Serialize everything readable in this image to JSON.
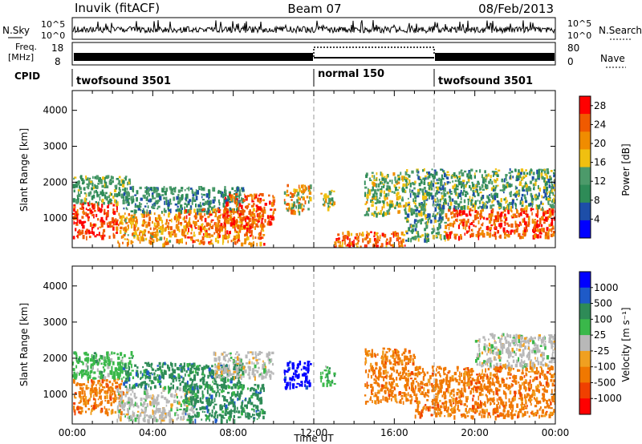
{
  "header": {
    "title": "Inuvik (fitACF)",
    "beam": "Beam 07",
    "date": "08/Feb/2013"
  },
  "status_panels": {
    "nsky_label": "N.Sky",
    "nsky_ticks": [
      "10^5",
      "10^0"
    ],
    "nsearch_ticks": [
      "10^5",
      "10^0"
    ],
    "nsearch_label": "N.Search",
    "freq_label_1": "Freq.",
    "freq_label_2": "[MHz]",
    "freq_ticks": [
      "18",
      "8"
    ],
    "nave_ticks": [
      "80",
      "0"
    ],
    "nave_label": "Nave",
    "cpid_label": "CPID",
    "cpid_segments": [
      {
        "label": "twofsound 3501",
        "start_h": 0,
        "end_h": 12
      },
      {
        "label": "normal 150",
        "start_h": 12,
        "end_h": 18
      },
      {
        "label": "twofsound 3501",
        "start_h": 18,
        "end_h": 24
      }
    ]
  },
  "colors": {
    "power_scale": [
      "#0000ff",
      "#1d4ea8",
      "#2e8b57",
      "#4c9a6a",
      "#f0c010",
      "#f08c00",
      "#f05a00",
      "#ff0000"
    ],
    "velocity_scale": [
      "#0000ff",
      "#1e5ac8",
      "#2e8b57",
      "#3ab84a",
      "#b8b8b8",
      "#f0a020",
      "#f07800",
      "#f04000",
      "#ff0000"
    ],
    "ground": "#a0a0a0"
  },
  "chart_data": [
    {
      "type": "heatmap",
      "name": "power",
      "xlabel": "",
      "ylabel": "Slant Range [km]",
      "xlim": [
        0,
        24
      ],
      "ylim": [
        180,
        4550
      ],
      "yticks": [
        "1000",
        "2000",
        "3000",
        "4000"
      ],
      "colorbar_label": "Power [dB]",
      "colorbar_ticks": [
        "4",
        "8",
        "12",
        "16",
        "20",
        "24",
        "28"
      ],
      "colorbar_range": [
        0,
        30
      ],
      "regions": [
        {
          "t0": 0.0,
          "t1": 2.2,
          "r0": 500,
          "r1": 1450,
          "v0": 22,
          "v1": 30
        },
        {
          "t0": 0.0,
          "t1": 3.0,
          "r0": 1450,
          "r1": 2200,
          "v0": 8,
          "v1": 16
        },
        {
          "t0": 2.2,
          "t1": 5.5,
          "r0": 300,
          "r1": 1200,
          "v0": 14,
          "v1": 26
        },
        {
          "t0": 2.5,
          "t1": 8.5,
          "r0": 1200,
          "r1": 1900,
          "v0": 6,
          "v1": 14
        },
        {
          "t0": 5.5,
          "t1": 9.5,
          "r0": 300,
          "r1": 1300,
          "v0": 16,
          "v1": 28
        },
        {
          "t0": 7.5,
          "t1": 10.0,
          "r0": 800,
          "r1": 1700,
          "v0": 20,
          "v1": 29
        },
        {
          "t0": 10.5,
          "t1": 11.8,
          "r0": 1200,
          "r1": 1950,
          "v0": 10,
          "v1": 26
        },
        {
          "t0": 12.3,
          "t1": 13.0,
          "r0": 1300,
          "r1": 1800,
          "v0": 10,
          "v1": 22
        },
        {
          "t0": 13.0,
          "t1": 16.5,
          "r0": 200,
          "r1": 650,
          "v0": 18,
          "v1": 29
        },
        {
          "t0": 14.5,
          "t1": 16.5,
          "r0": 1100,
          "r1": 2300,
          "v0": 8,
          "v1": 20
        },
        {
          "t0": 16.5,
          "t1": 18.5,
          "r0": 400,
          "r1": 2400,
          "v0": 6,
          "v1": 18
        },
        {
          "t0": 18.5,
          "t1": 24.0,
          "r0": 500,
          "r1": 1300,
          "v0": 20,
          "v1": 30
        },
        {
          "t0": 18.5,
          "t1": 24.0,
          "r0": 1300,
          "r1": 2400,
          "v0": 6,
          "v1": 18
        }
      ]
    },
    {
      "type": "heatmap",
      "name": "velocity",
      "xlabel": "Time UT",
      "ylabel": "Slant Range [km]",
      "xlim": [
        0,
        24
      ],
      "ylim": [
        180,
        4550
      ],
      "xticks": [
        "00:00",
        "04:00",
        "08:00",
        "12:00",
        "16:00",
        "20:00",
        "00:00"
      ],
      "yticks": [
        "1000",
        "2000",
        "3000",
        "4000"
      ],
      "colorbar_label": "Velocity [m s⁻¹]",
      "colorbar_ticks": [
        "1000",
        "500",
        "100",
        "25",
        "-25",
        "-100",
        "-500",
        "-1000"
      ],
      "regions": [
        {
          "t0": 0.0,
          "t1": 2.5,
          "r0": 500,
          "r1": 1450,
          "cat": 6
        },
        {
          "t0": 0.0,
          "t1": 3.0,
          "r0": 1450,
          "r1": 2200,
          "cat": 3
        },
        {
          "t0": 2.2,
          "t1": 6.0,
          "r0": 300,
          "r1": 1200,
          "cat": 4
        },
        {
          "t0": 2.5,
          "t1": 8.5,
          "r0": 1200,
          "r1": 1900,
          "cat": 2
        },
        {
          "t0": 5.5,
          "t1": 9.5,
          "r0": 300,
          "r1": 1300,
          "cat": 2
        },
        {
          "t0": 7.0,
          "t1": 10.0,
          "r0": 1500,
          "r1": 2200,
          "cat": 4
        },
        {
          "t0": 10.5,
          "t1": 11.8,
          "r0": 1200,
          "r1": 1950,
          "cat": 0
        },
        {
          "t0": 12.3,
          "t1": 13.0,
          "r0": 1300,
          "r1": 1800,
          "cat": 3
        },
        {
          "t0": 14.5,
          "t1": 17.0,
          "r0": 800,
          "r1": 2300,
          "cat": 6
        },
        {
          "t0": 17.0,
          "t1": 24.0,
          "r0": 400,
          "r1": 1800,
          "cat": 6
        },
        {
          "t0": 20.0,
          "t1": 24.0,
          "r0": 1800,
          "r1": 2700,
          "cat": 4
        }
      ]
    }
  ]
}
